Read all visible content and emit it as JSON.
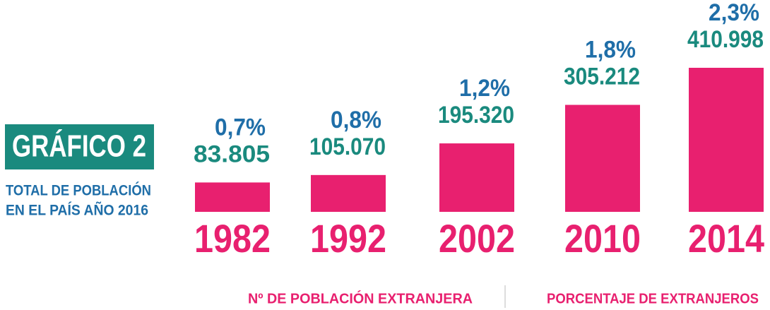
{
  "chart_data": {
    "type": "bar",
    "title": "GRÁFICO 2",
    "subtitle": [
      "TOTAL DE POBLACIÓN",
      "EN EL PAÍS AÑO 2016"
    ],
    "categories": [
      "1982",
      "1992",
      "2002",
      "2010",
      "2014"
    ],
    "series": [
      {
        "name": "Nº DE POBLACIÓN EXTRANJERA",
        "color": "#e8206f",
        "label_color": "#1a8a7e",
        "values": [
          83805,
          105070,
          195320,
          305212,
          410998
        ],
        "value_labels": [
          "83.805",
          "105.070",
          "195.320",
          "305.212",
          "410.998"
        ]
      },
      {
        "name": "PORCENTAJE DE EXTRANJEROS",
        "color": "#1f6ea8",
        "values": [
          0.7,
          0.8,
          1.2,
          1.8,
          2.3
        ],
        "value_labels": [
          "0,7%",
          "0,8%",
          "1,2%",
          "1,8%",
          "2,3%"
        ]
      }
    ]
  }
}
